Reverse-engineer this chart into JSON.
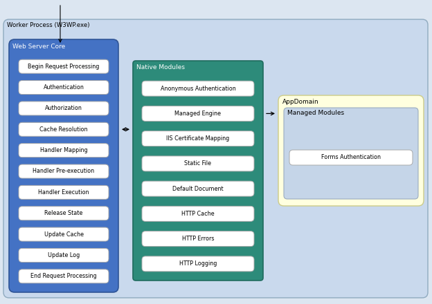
{
  "bg_color": "#dce6f1",
  "outer_box": {
    "label": "Worker Process (W3WP.exe)",
    "color": "#c9d9ed",
    "edge": "#8faabf"
  },
  "web_server_core": {
    "label": "Web Server Core",
    "bg": "#4472c4",
    "edge": "#2f5496",
    "items": [
      "Begin Request Processing",
      "Authentication",
      "Authorization",
      "Cache Resolution",
      "Handler Mapping",
      "Handler Pre-execution",
      "Handler Execution",
      "Release State",
      "Update Cache",
      "Update Log",
      "End Request Processing"
    ]
  },
  "native_modules": {
    "label": "Native Modules",
    "bg": "#2d8b7a",
    "edge": "#1f6b5e",
    "items": [
      "Anonymous Authentication",
      "Managed Engine",
      "IIS Certificate Mapping",
      "Static File",
      "Default Document",
      "HTTP Cache",
      "HTTP Errors",
      "HTTP Logging"
    ]
  },
  "appdomain": {
    "label": "AppDomain",
    "bg": "#ffffdf",
    "edge": "#cccc88",
    "managed_modules": {
      "label": "Managed Modules",
      "bg": "#c5d5e8",
      "edge": "#9aabbf",
      "items": [
        "Forms Authentication"
      ]
    }
  },
  "item_box_color": "#ffffff",
  "item_box_edge": "#aaaaaa",
  "item_font_size": 5.8,
  "label_font_size": 6.5,
  "outer_label_font_size": 6.2
}
